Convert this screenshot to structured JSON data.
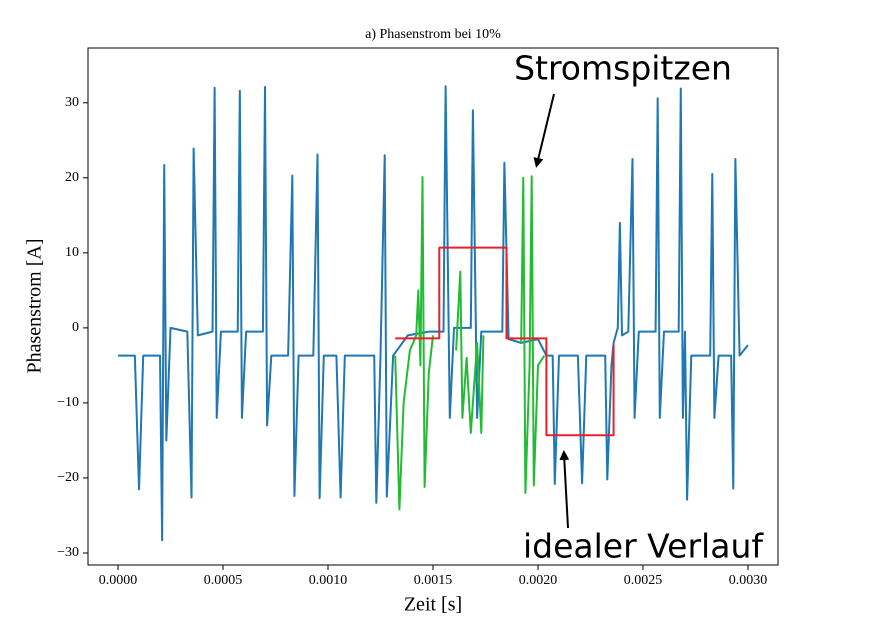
{
  "chart_data": {
    "type": "line",
    "title": "a) Phasenstrom bei 10%",
    "x_label": "Zeit [s]",
    "y_label": "Phasenstrom [A]",
    "xlim": [
      -0.000143,
      0.003143
    ],
    "ylim": [
      -31.6,
      37.3
    ],
    "xticks": [
      {
        "value": 0,
        "label": "0.0000"
      },
      {
        "value": 0.0005,
        "label": "0.0005"
      },
      {
        "value": 0.001,
        "label": "0.0010"
      },
      {
        "value": 0.0015,
        "label": "0.0015"
      },
      {
        "value": 0.002,
        "label": "0.0020"
      },
      {
        "value": 0.0025,
        "label": "0.0025"
      },
      {
        "value": 0.003,
        "label": "0.0030"
      }
    ],
    "yticks": [
      {
        "value": -30,
        "label": "−30"
      },
      {
        "value": -20,
        "label": "−20"
      },
      {
        "value": -10,
        "label": "−10"
      },
      0,
      10,
      20,
      30
    ],
    "series": [
      {
        "color": "#1f77b4",
        "x": [
          0,
          8e-05,
          0.0001,
          0.00012,
          0.0002,
          0.00021,
          0.00022,
          0.00023,
          0.00025,
          0.00033,
          0.00035,
          0.00036,
          0.00038,
          0.00045,
          0.00046,
          0.00047,
          0.00049,
          0.00057,
          0.00058,
          0.00059,
          0.00061,
          0.00069,
          0.0007,
          0.00071,
          0.00073,
          0.00081,
          0.00083,
          0.00084,
          0.00086,
          0.00093,
          0.00095,
          0.00096,
          0.00098,
          0.00104,
          0.00106,
          0.00108,
          0.00122,
          0.00123,
          0.00125,
          0.00127,
          0.00128,
          0.00131,
          0.00138,
          0.00148,
          0.00155,
          0.00156,
          0.00158,
          0.0016,
          0.00168,
          0.00169,
          0.00171,
          0.00173,
          0.00183,
          0.00184,
          0.00186,
          0.00192,
          0.002,
          0.00204,
          0.00207,
          0.00208,
          0.0021,
          0.00219,
          0.00221,
          0.00223,
          0.00232,
          0.00233,
          0.00235,
          0.00236,
          0.00238,
          0.00239,
          0.0024,
          0.00243,
          0.00245,
          0.00246,
          0.00248,
          0.00256,
          0.00257,
          0.00258,
          0.0026,
          0.00267,
          0.00268,
          0.00269,
          0.0027,
          0.00271,
          0.00273,
          0.00282,
          0.00283,
          0.00284,
          0.00286,
          0.00292,
          0.00293,
          0.00294,
          0.00296,
          0.003
        ],
        "values": [
          -3.7,
          -3.7,
          -21.5,
          -3.7,
          -3.7,
          -28.3,
          21.7,
          -15,
          0,
          -0.5,
          -22.6,
          23.9,
          -1,
          -0.5,
          32,
          -12,
          -0.5,
          -0.5,
          31.6,
          -12,
          -0.5,
          -0.5,
          32.1,
          -13,
          -3.7,
          -3.7,
          20.3,
          -22.4,
          -3.7,
          -3.7,
          23.1,
          -22.7,
          -3.7,
          -3.7,
          -22.6,
          -3.7,
          -3.7,
          -23.3,
          -3.7,
          23,
          -22.5,
          -3.7,
          -1,
          -0.5,
          -0.5,
          32.2,
          -12,
          0,
          0,
          29,
          -12,
          -0.5,
          -0.5,
          22,
          -1.5,
          -2,
          -1.5,
          -3.7,
          -3.7,
          -20.8,
          -3.7,
          -3.7,
          -20.7,
          -3.7,
          -3.7,
          -20.2,
          -5,
          -2,
          0,
          14,
          -1,
          -0.5,
          22.5,
          -12,
          -0.5,
          -0.5,
          30.6,
          -12,
          -0.5,
          -0.5,
          31.9,
          -12,
          -0.5,
          -22.9,
          -3.7,
          -3.7,
          20.5,
          -12,
          -3.7,
          -3.7,
          -21.4,
          22.5,
          -3.7,
          -2.3
        ]
      },
      {
        "color": "#22bb33",
        "x": [
          0.00132,
          0.00134,
          0.00136,
          0.00139,
          0.00142,
          0.00143,
          0.00144,
          0.00145,
          0.00146,
          0.00148,
          0.0015,
          0.00155,
          0.00161,
          0.00163,
          0.00164,
          0.00166,
          0.00168,
          0.00171,
          0.00173,
          0.00174,
          0.0018,
          0.00192,
          0.00193,
          0.00194,
          0.00196,
          0.00197,
          0.00198,
          0.002,
          0.00203
        ],
        "values": [
          -3.7,
          -24.2,
          -10,
          -3,
          -1,
          5,
          -5,
          20.1,
          -21.2,
          -6,
          -1,
          null,
          -3,
          7.5,
          -12,
          -4,
          -14,
          -2,
          -14,
          -1,
          null,
          -2,
          20,
          -22,
          -5,
          20.2,
          -21,
          -5,
          -3.7
        ]
      },
      {
        "color": "#e8202a",
        "x": [
          0.00132,
          0.00153,
          0.00153,
          0.00185,
          0.00185,
          0.00204,
          0.00204,
          0.00236,
          0.00236
        ],
        "values": [
          -1.4,
          -1.4,
          10.7,
          10.7,
          -1.4,
          -1.4,
          -14.3,
          -14.3,
          -2.2
        ]
      }
    ],
    "annotations": [
      "Stromspitzen",
      "idealer Verlauf"
    ]
  }
}
